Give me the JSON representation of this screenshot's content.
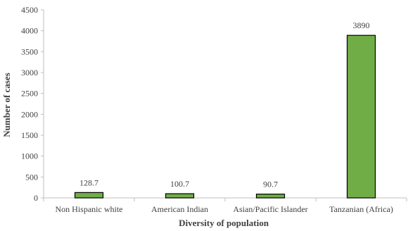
{
  "chart_data": {
    "type": "bar",
    "title": "",
    "xlabel": "Diversity of population",
    "ylabel": "Number of cases",
    "categories": [
      "Non Hispanic white",
      "American Indian",
      "Asian/Pacific Islander",
      "Tanzanian (Africa)"
    ],
    "values": [
      128.7,
      100.7,
      90.7,
      3890
    ],
    "data_labels": [
      "128.7",
      "100.7",
      "90.7",
      "3890"
    ],
    "ylim": [
      0,
      4500
    ],
    "yticks": [
      0,
      500,
      1000,
      1500,
      2000,
      2500,
      3000,
      3500,
      4000,
      4500
    ],
    "ytick_labels": [
      "0",
      "500",
      "1000",
      "1500",
      "2000",
      "2500",
      "3000",
      "3500",
      "4000",
      "4500"
    ],
    "grid": false,
    "legend": "none",
    "colors": {
      "bar_fill": "#70ad47",
      "bar_stroke": "#000000",
      "axis": "#bfbfbf",
      "text": "#404040"
    }
  }
}
